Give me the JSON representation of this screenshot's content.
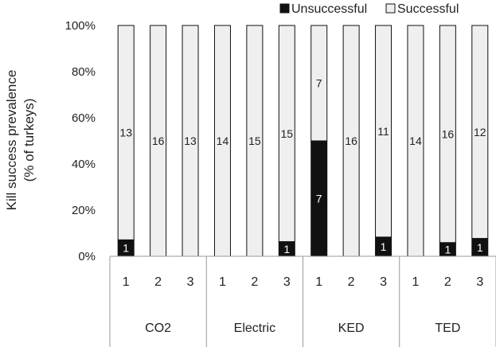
{
  "chart_data": {
    "type": "bar",
    "stacked": true,
    "ylabel_lines": [
      "Kill success prevalence",
      "(% of turkeys)"
    ],
    "ylim": [
      0,
      100
    ],
    "y_ticks": [
      "0%",
      "20%",
      "40%",
      "60%",
      "80%",
      "100%"
    ],
    "groups": [
      {
        "name": "CO2",
        "categories": [
          "1",
          "2",
          "3"
        ]
      },
      {
        "name": "Electric",
        "categories": [
          "1",
          "2",
          "3"
        ]
      },
      {
        "name": "KED",
        "categories": [
          "1",
          "2",
          "3"
        ]
      },
      {
        "name": "TED",
        "categories": [
          "1",
          "2",
          "3"
        ]
      }
    ],
    "series": [
      {
        "name": "Unsuccessful",
        "color": "#111111",
        "counts": [
          1,
          0,
          0,
          0,
          0,
          1,
          7,
          0,
          1,
          0,
          1,
          1
        ],
        "percent": [
          7.1,
          0,
          0,
          0,
          0,
          6.3,
          50,
          0,
          8.3,
          0,
          5.9,
          7.7
        ]
      },
      {
        "name": "Successful",
        "color": "#efefef",
        "counts": [
          13,
          16,
          13,
          14,
          15,
          15,
          7,
          16,
          11,
          14,
          16,
          12
        ],
        "percent": [
          92.9,
          100,
          100,
          100,
          100,
          93.7,
          50,
          100,
          91.7,
          100,
          94.1,
          92.3
        ]
      }
    ],
    "legend": [
      "Unsuccessful",
      "Successful"
    ],
    "legend_position": "top-right"
  }
}
